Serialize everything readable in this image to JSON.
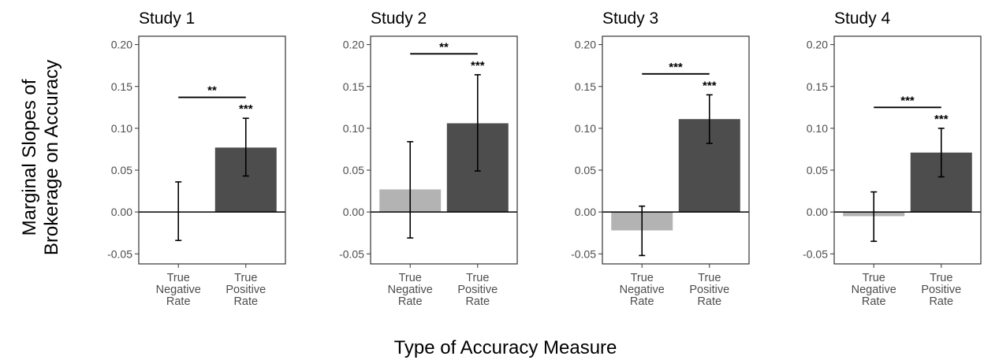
{
  "ylabel_line1": "Marginal Slopes of",
  "ylabel_line2": "Brokerage on Accuracy",
  "xlabel": "Type of Accuracy Measure",
  "colors": {
    "negative_bar": "#b3b3b3",
    "positive_bar": "#4d4d4d"
  },
  "chart_data": [
    {
      "type": "bar",
      "title": "Study 1",
      "categories": [
        [
          "True",
          "Negative",
          "Rate"
        ],
        [
          "True",
          "Positive",
          "Rate"
        ]
      ],
      "values": [
        0.0,
        0.077
      ],
      "ci_low": [
        -0.034,
        0.043
      ],
      "ci_high": [
        0.036,
        0.112
      ],
      "bar_sig": [
        "",
        "***"
      ],
      "comparison_sig": "**",
      "comparison_y": 0.137,
      "ylim": [
        -0.062,
        0.21
      ],
      "yticks": [
        "0.20",
        "0.15",
        "0.10",
        "0.05",
        "0.00",
        "-0.05"
      ]
    },
    {
      "type": "bar",
      "title": "Study 2",
      "categories": [
        [
          "True",
          "Negative",
          "Rate"
        ],
        [
          "True",
          "Positive",
          "Rate"
        ]
      ],
      "values": [
        0.027,
        0.106
      ],
      "ci_low": [
        -0.031,
        0.049
      ],
      "ci_high": [
        0.084,
        0.164
      ],
      "bar_sig": [
        "",
        "***"
      ],
      "comparison_sig": "**",
      "comparison_y": 0.189,
      "ylim": [
        -0.062,
        0.21
      ],
      "yticks": [
        "0.20",
        "0.15",
        "0.10",
        "0.05",
        "0.00",
        "-0.05"
      ]
    },
    {
      "type": "bar",
      "title": "Study 3",
      "categories": [
        [
          "True",
          "Negative",
          "Rate"
        ],
        [
          "True",
          "Positive",
          "Rate"
        ]
      ],
      "values": [
        -0.022,
        0.111
      ],
      "ci_low": [
        -0.052,
        0.082
      ],
      "ci_high": [
        0.007,
        0.14
      ],
      "bar_sig": [
        "",
        "***"
      ],
      "comparison_sig": "***",
      "comparison_y": 0.165,
      "ylim": [
        -0.062,
        0.21
      ],
      "yticks": [
        "0.20",
        "0.15",
        "0.10",
        "0.05",
        "0.00",
        "-0.05"
      ]
    },
    {
      "type": "bar",
      "title": "Study 4",
      "categories": [
        [
          "True",
          "Negative",
          "Rate"
        ],
        [
          "True",
          "Positive",
          "Rate"
        ]
      ],
      "values": [
        -0.005,
        0.071
      ],
      "ci_low": [
        -0.035,
        0.042
      ],
      "ci_high": [
        0.024,
        0.1
      ],
      "bar_sig": [
        "",
        "***"
      ],
      "comparison_sig": "***",
      "comparison_y": 0.125,
      "ylim": [
        -0.062,
        0.21
      ],
      "yticks": [
        "0.20",
        "0.15",
        "0.10",
        "0.05",
        "0.00",
        "-0.05"
      ]
    }
  ]
}
